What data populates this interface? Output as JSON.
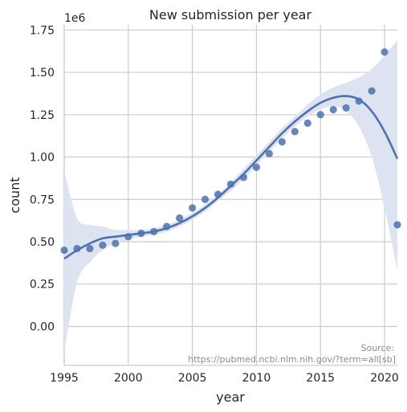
{
  "chart_data": {
    "type": "scatter",
    "title": "New submission per year",
    "xlabel": "year",
    "ylabel": "count",
    "offset_label": "1e6",
    "xlim": [
      1995,
      2021
    ],
    "ylim": [
      -0.23,
      1.78
    ],
    "xticks": [
      1995,
      2000,
      2005,
      2010,
      2015,
      2020
    ],
    "yticks": [
      0.0,
      0.25,
      0.5,
      0.75,
      1.0,
      1.25,
      1.5,
      1.75
    ],
    "ytick_labels": [
      "0.00",
      "0.25",
      "0.50",
      "0.75",
      "1.00",
      "1.25",
      "1.50",
      "1.75"
    ],
    "grid": true,
    "point_color": "#4c72b0",
    "line_color": "#4c72b0",
    "band_color": "#dde3f0",
    "series": [
      {
        "kind": "points",
        "x": [
          1995,
          1996,
          1997,
          1998,
          1999,
          2000,
          2001,
          2002,
          2003,
          2004,
          2005,
          2006,
          2007,
          2008,
          2009,
          2010,
          2011,
          2012,
          2013,
          2014,
          2015,
          2016,
          2017,
          2018,
          2019,
          2020,
          2021
        ],
        "y": [
          0.45,
          0.46,
          0.46,
          0.48,
          0.49,
          0.53,
          0.55,
          0.56,
          0.59,
          0.64,
          0.7,
          0.75,
          0.78,
          0.84,
          0.88,
          0.94,
          1.02,
          1.09,
          1.15,
          1.2,
          1.25,
          1.28,
          1.29,
          1.33,
          1.39,
          1.62,
          0.6
        ]
      },
      {
        "kind": "fit",
        "x": [
          1995,
          1996,
          1997,
          1998,
          1999,
          2000,
          2001,
          2002,
          2003,
          2004,
          2005,
          2006,
          2007,
          2008,
          2009,
          2010,
          2011,
          2012,
          2013,
          2014,
          2015,
          2016,
          2017,
          2018,
          2019,
          2020,
          2021
        ],
        "y": [
          0.4,
          0.45,
          0.49,
          0.52,
          0.53,
          0.54,
          0.55,
          0.56,
          0.58,
          0.61,
          0.65,
          0.7,
          0.76,
          0.83,
          0.9,
          0.98,
          1.06,
          1.14,
          1.21,
          1.27,
          1.32,
          1.35,
          1.36,
          1.34,
          1.27,
          1.15,
          0.99
        ],
        "ci_lower": [
          -0.15,
          0.26,
          0.38,
          0.45,
          0.49,
          0.51,
          0.53,
          0.54,
          0.56,
          0.59,
          0.63,
          0.68,
          0.74,
          0.8,
          0.87,
          0.95,
          1.03,
          1.11,
          1.18,
          1.24,
          1.28,
          1.3,
          1.27,
          1.18,
          1.0,
          0.7,
          0.33
        ],
        "ci_upper": [
          0.92,
          0.64,
          0.6,
          0.59,
          0.57,
          0.57,
          0.57,
          0.58,
          0.6,
          0.63,
          0.67,
          0.72,
          0.78,
          0.85,
          0.93,
          1.01,
          1.09,
          1.17,
          1.24,
          1.31,
          1.37,
          1.41,
          1.44,
          1.47,
          1.52,
          1.6,
          1.69
        ]
      }
    ],
    "annotation": [
      "Source:",
      "https://pubmed.ncbi.nlm.nih.gov/?term=all[sb]"
    ]
  }
}
